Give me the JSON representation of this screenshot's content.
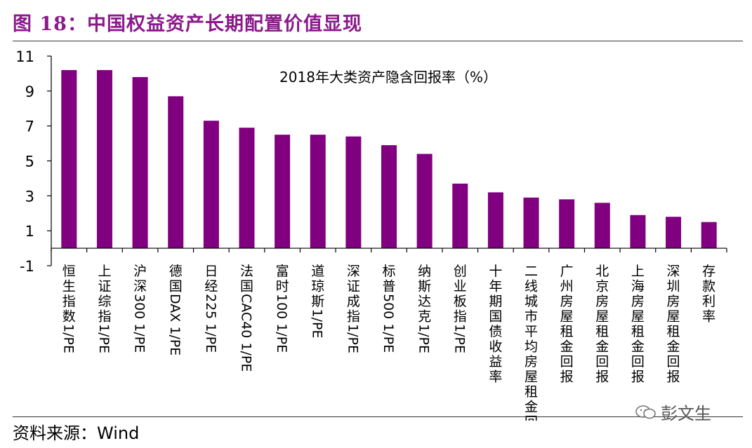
{
  "figure": {
    "title": "图 18：中国权益资产长期配置价值显现",
    "source": "资料来源：Wind",
    "watermark": "彭文生"
  },
  "colors": {
    "bar": "#800080",
    "axis": "#000000",
    "title": "#8b1a8b"
  },
  "chart_data": {
    "type": "bar",
    "title": "2018年大类资产隐含回报率（%）",
    "xlabel": "",
    "ylabel": "",
    "ylim": [
      -1,
      11
    ],
    "yticks": [
      -1,
      1,
      3,
      5,
      7,
      9,
      11
    ],
    "categories": [
      "恒生指数1/PE",
      "上证综指1/PE",
      "沪深300 1/PE",
      "德国DAX 1/PE",
      "日经225 1/PE",
      "法国CAC40 1/PE",
      "富时100 1/PE",
      "道琼斯1/PE",
      "深证成指1/PE",
      "标普500 1/PE",
      "纳斯达克1/PE",
      "创业板指1/PE",
      "十年期国债收益率",
      "二线城市平均房屋租金回报",
      "广州房屋租金回报",
      "北京房屋租金回报",
      "上海房屋租金回报",
      "深圳房屋租金回报",
      "存款利率"
    ],
    "values": [
      10.2,
      10.2,
      9.8,
      8.7,
      7.3,
      6.9,
      6.5,
      6.5,
      6.4,
      5.9,
      5.4,
      3.7,
      3.2,
      2.9,
      2.8,
      2.6,
      1.9,
      1.8,
      1.5
    ]
  }
}
